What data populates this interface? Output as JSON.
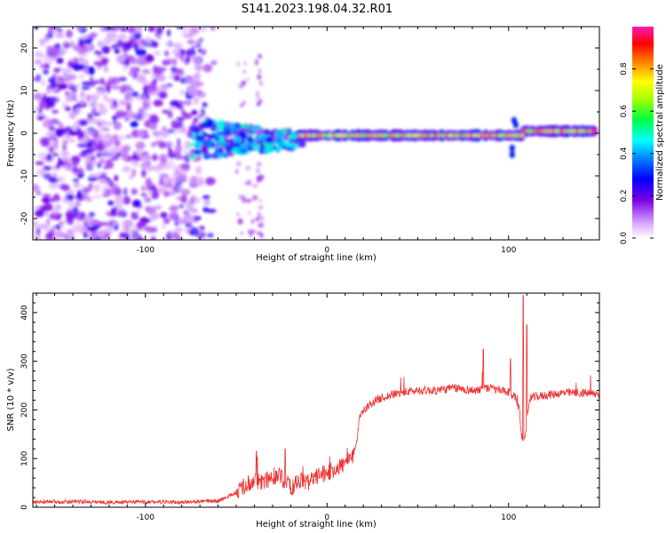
{
  "title": "S141.2023.198.04.32.R01",
  "chart_data": [
    {
      "type": "heatmap",
      "xlabel": "Height of straight line (km)",
      "ylabel": "Frequency (Hz)",
      "xlim": [
        -162,
        150
      ],
      "ylim": [
        -25,
        25
      ],
      "xticks": [
        -100,
        0,
        100
      ],
      "yticks": [
        -20,
        -10,
        0,
        10,
        20
      ],
      "colorbar": {
        "label": "Normalized spectral amplitude",
        "ticks": [
          "0.0",
          "0.2",
          "0.4",
          "0.6",
          "0.8"
        ],
        "range": [
          0,
          1
        ],
        "colormap": [
          "#ffffff",
          "#8a00e6",
          "#0000ff",
          "#00ffff",
          "#00ff00",
          "#ffff00",
          "#ff0000",
          "#ff1ab2"
        ]
      },
      "description_series": [
        {
          "x": [
            -162,
            -70
          ],
          "y_center": 0,
          "note": "broadband noise, amplitude 0.1-0.3"
        },
        {
          "x": [
            -70,
            -15
          ],
          "y_center": -2,
          "note": "irregular signal, amplitude 0.2-0.5"
        },
        {
          "x": [
            -15,
            150
          ],
          "y_center": 0,
          "note": "narrow ridge near 0 Hz, amplitude 0.6-1.0"
        }
      ]
    },
    {
      "type": "line",
      "xlabel": "Height of straight line (km)",
      "ylabel": "SNR (10 * v/v)",
      "xlim": [
        -162,
        150
      ],
      "ylim": [
        0,
        440
      ],
      "xticks": [
        -100,
        0,
        100
      ],
      "yticks": [
        0,
        100,
        200,
        300,
        400
      ],
      "color": "#ee3333",
      "series": [
        {
          "x": [
            -162,
            -140,
            -120,
            -100,
            -80,
            -60,
            -50,
            -45,
            -40,
            -35,
            -30,
            -25,
            -20,
            -15,
            -10,
            -5,
            0,
            5,
            10,
            14,
            15,
            17,
            18,
            20,
            25,
            30,
            40,
            50,
            60,
            70,
            80,
            90,
            100,
            104,
            106,
            107,
            108,
            110,
            112,
            120,
            130,
            140,
            150
          ],
          "y": [
            10,
            12,
            10,
            11,
            10,
            13,
            30,
            45,
            55,
            50,
            65,
            60,
            40,
            55,
            50,
            65,
            70,
            80,
            90,
            100,
            120,
            150,
            190,
            200,
            215,
            225,
            235,
            240,
            240,
            245,
            240,
            245,
            235,
            225,
            200,
            150,
            135,
            170,
            225,
            230,
            235,
            235,
            232
          ]
        }
      ],
      "spikes": [
        {
          "x": -39,
          "y": 115
        },
        {
          "x": -23,
          "y": 120
        },
        {
          "x": 18,
          "y": 190
        },
        {
          "x": 86,
          "y": 325
        },
        {
          "x": 101,
          "y": 305
        },
        {
          "x": 108,
          "y": 435
        },
        {
          "x": 110,
          "y": 375
        }
      ]
    }
  ]
}
